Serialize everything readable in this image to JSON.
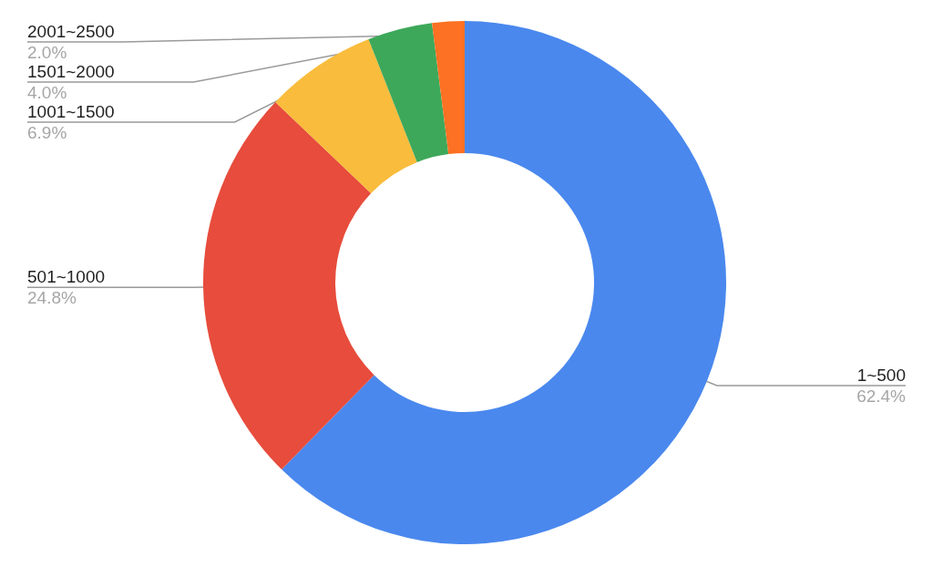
{
  "chart_data": {
    "type": "donut",
    "categories": [
      "1~500",
      "501~1000",
      "1001~1500",
      "1501~2000",
      "2001~2500"
    ],
    "values": [
      62.4,
      24.8,
      6.9,
      4.0,
      2.0
    ],
    "value_labels": [
      "62.4%",
      "24.8%",
      "6.9%",
      "4.0%",
      "2.0%"
    ],
    "colors": [
      "#4a88ee",
      "#e74c3c",
      "#f9bc3c",
      "#3da85a",
      "#fc7123"
    ]
  }
}
